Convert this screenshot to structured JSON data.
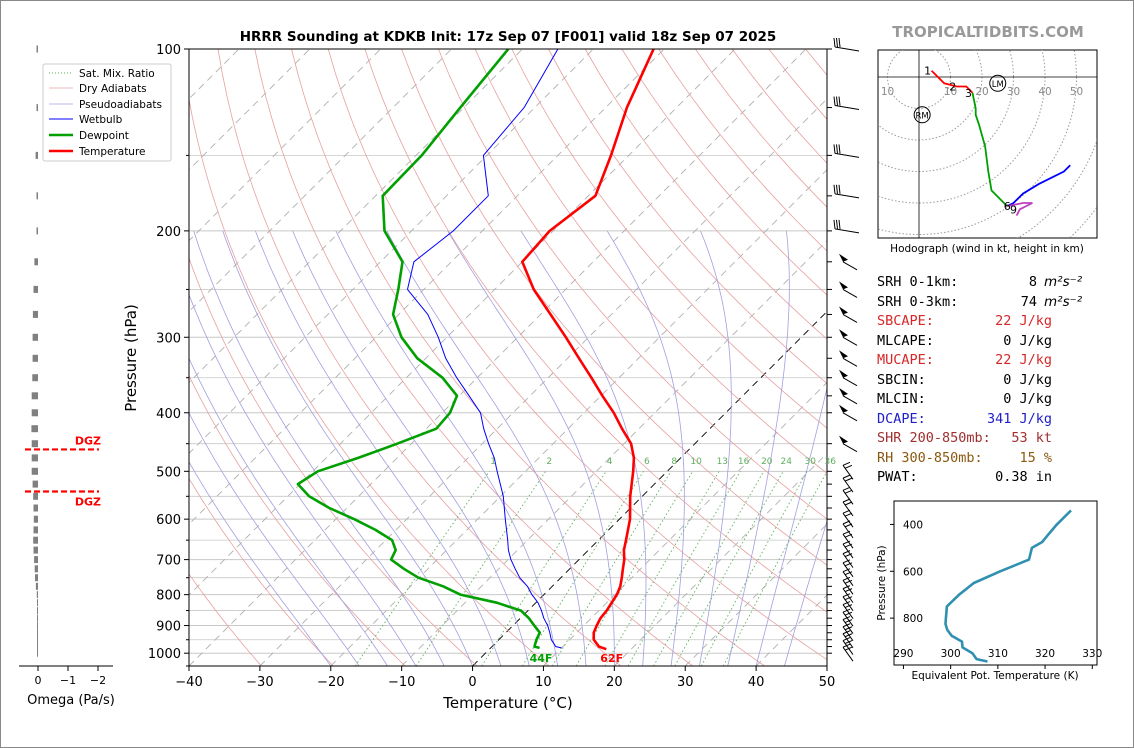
{
  "title": "HRRR Sounding at KDKB Init: 17z Sep 07 [F001] valid 18z Sep 07 2025",
  "brand": "TROPICALTIDBITS.COM",
  "colors": {
    "temperature": "#ff0000",
    "dewpoint": "#00a000",
    "wetbulb": "#0000ff",
    "dry_adiabat": "#e8a0a0",
    "pseudoadiabat": "#a0a0e0",
    "mixing_ratio": "#60b060",
    "dgz": "#ff0000",
    "omega_bar": "#808080",
    "theta_e": "#3090b0",
    "brand": "#999999"
  },
  "chart_data": [
    {
      "name": "skewt",
      "type": "line",
      "xlabel": "Temperature (°C)",
      "ylabel": "Pressure (hPa)",
      "xlim": [
        -40,
        50
      ],
      "ylim": [
        1050,
        100
      ],
      "y_scale": "log",
      "skew": "45 degrees",
      "x_ticks": [
        -40,
        -30,
        -20,
        -10,
        0,
        10,
        20,
        30,
        40,
        50
      ],
      "x_tick_labels": [
        "−40",
        "−30",
        "−20",
        "−10",
        "0",
        "10",
        "20",
        "30",
        "40",
        "50"
      ],
      "y_ticks": [
        100,
        200,
        300,
        400,
        500,
        600,
        700,
        800,
        900,
        1000
      ],
      "y_tick_labels": [
        "100",
        "200",
        "300",
        "400",
        "500",
        "600",
        "700",
        "800",
        "900",
        "1000"
      ],
      "grid": true,
      "legend": [
        "Sat. Mix. Ratio",
        "Dry Adiabats",
        "Pseudoadiabats",
        "Wetbulb",
        "Dewpoint",
        "Temperature"
      ],
      "legend_position": "top-left",
      "mixing_ratio_labels": [
        "1",
        "2",
        "4",
        "6",
        "8",
        "10",
        "13",
        "16",
        "20",
        "24",
        "30",
        "36"
      ],
      "mixing_ratio_values": [
        1,
        2,
        4,
        6,
        8,
        10,
        13,
        16,
        20,
        24,
        30,
        36
      ],
      "surface_temp_label": "62F",
      "surface_dewpoint_label": "44F",
      "series": [
        {
          "name": "Temperature",
          "p": [
            985,
            975,
            950,
            925,
            900,
            875,
            850,
            825,
            800,
            775,
            750,
            725,
            700,
            675,
            650,
            600,
            550,
            500,
            475,
            450,
            425,
            400,
            375,
            350,
            325,
            300,
            275,
            250,
            225,
            200,
            175,
            150,
            125,
            100
          ],
          "t": [
            16.5,
            15.1,
            13.4,
            12.4,
            11.8,
            11.3,
            11.1,
            10.7,
            10.3,
            9.6,
            8.6,
            7.5,
            6.4,
            5.0,
            3.9,
            1.5,
            -1.7,
            -4.8,
            -6.6,
            -9.0,
            -12.4,
            -15.8,
            -19.8,
            -23.9,
            -28.4,
            -33.2,
            -38.6,
            -44.5,
            -50.0,
            -50.5,
            -49.0,
            -52.5,
            -57.0,
            -61.5
          ]
        },
        {
          "name": "Dewpoint",
          "p": [
            980,
            975,
            950,
            925,
            900,
            875,
            850,
            825,
            800,
            775,
            750,
            725,
            700,
            675,
            650,
            625,
            600,
            575,
            550,
            525,
            500,
            475,
            450,
            425,
            400,
            375,
            350,
            325,
            300,
            275,
            250,
            225,
            200,
            175,
            150,
            125,
            100
          ],
          "t": [
            6.9,
            6.0,
            5.3,
            4.8,
            3.0,
            1.2,
            -1.0,
            -5.5,
            -11.8,
            -15.4,
            -20.1,
            -23.4,
            -26.5,
            -27.2,
            -29.1,
            -32.9,
            -37.4,
            -42.5,
            -47.0,
            -50.3,
            -49.3,
            -45.5,
            -42.0,
            -38.6,
            -38.9,
            -40.3,
            -44.9,
            -51.2,
            -56.4,
            -60.8,
            -63.6,
            -66.9,
            -73.8,
            -79.0,
            -79.2,
            -80.5,
            -82.0
          ]
        },
        {
          "name": "Wetbulb",
          "p": [
            980,
            975,
            950,
            925,
            900,
            875,
            850,
            825,
            800,
            775,
            750,
            725,
            700,
            675,
            650,
            600,
            550,
            500,
            475,
            450,
            425,
            400,
            375,
            350,
            325,
            300,
            275,
            250,
            225,
            200,
            175,
            150,
            125,
            100
          ],
          "t": [
            10.0,
            9.0,
            7.4,
            6.2,
            4.9,
            3.3,
            1.9,
            0.3,
            -1.7,
            -3.5,
            -5.8,
            -7.7,
            -9.6,
            -11.3,
            -12.8,
            -16.1,
            -19.6,
            -24.0,
            -26.3,
            -29.1,
            -31.9,
            -34.6,
            -38.6,
            -42.9,
            -47.2,
            -51.2,
            -55.9,
            -62.3,
            -65.3,
            -64.1,
            -64.1,
            -70.5,
            -71.5,
            -75.0
          ]
        }
      ],
      "wind_barb_pressures": [
        100,
        125,
        150,
        175,
        200,
        225,
        250,
        275,
        300,
        325,
        350,
        375,
        400,
        450,
        500,
        525,
        550,
        575,
        600,
        625,
        650,
        675,
        700,
        725,
        750,
        775,
        800,
        825,
        850,
        875,
        900,
        925,
        950,
        975,
        1000
      ]
    },
    {
      "name": "omega",
      "type": "bar",
      "xlabel": "Omega (Pa/s)",
      "x_ticks": [
        0,
        -1,
        -2
      ],
      "x_tick_labels": [
        "0",
        "−1",
        "−2"
      ],
      "p": [
        100,
        125,
        150,
        175,
        200,
        225,
        250,
        275,
        300,
        325,
        350,
        375,
        400,
        425,
        450,
        475,
        500,
        525,
        550,
        575,
        600,
        625,
        650,
        675,
        700,
        725,
        750,
        775,
        800,
        825,
        850,
        875,
        900,
        925,
        950,
        975,
        1000
      ],
      "values": [
        -0.05,
        -0.05,
        -0.08,
        -0.05,
        -0.05,
        -0.12,
        -0.15,
        -0.17,
        -0.18,
        -0.18,
        -0.19,
        -0.21,
        -0.21,
        -0.22,
        -0.21,
        -0.21,
        -0.21,
        -0.18,
        -0.16,
        -0.15,
        -0.14,
        -0.15,
        -0.16,
        -0.15,
        -0.13,
        -0.11,
        -0.1,
        -0.07,
        -0.04,
        -0.02,
        -0.01,
        -0.01,
        0.0,
        -0.03,
        -0.03,
        -0.03,
        -0.03
      ],
      "dgz_label": "DGZ",
      "dgz_bounds_hPa": [
        460,
        540
      ]
    },
    {
      "name": "hodograph",
      "type": "line",
      "caption": "Hodograph (wind in kt, height in km)",
      "range_labels": [
        "10",
        "10",
        "20",
        "30",
        "40",
        "50"
      ],
      "range_values": [
        10,
        10,
        20,
        30,
        40,
        50
      ],
      "height_labels": [
        "1",
        "2",
        "3",
        "6",
        "9"
      ],
      "markers": [
        "LM",
        "RM"
      ],
      "segments": [
        {
          "color": "#ff0000",
          "points": [
            [
              4,
              2
            ],
            [
              8,
              -2
            ],
            [
              12,
              -3
            ],
            [
              15,
              -3
            ],
            [
              17,
              -5
            ]
          ]
        },
        {
          "color": "#00a000",
          "points": [
            [
              17,
              -5
            ],
            [
              18,
              -10
            ],
            [
              18,
              -12
            ],
            [
              19,
              -15
            ],
            [
              21,
              -22
            ],
            [
              22,
              -30
            ],
            [
              23,
              -36
            ],
            [
              25,
              -38
            ],
            [
              28,
              -41
            ]
          ]
        },
        {
          "color": "#0000ff",
          "points": [
            [
              28,
              -41
            ],
            [
              30,
              -40
            ],
            [
              33,
              -37
            ],
            [
              38,
              -34
            ],
            [
              46,
              -30
            ],
            [
              48,
              -28
            ]
          ]
        },
        {
          "color": "#c040c0",
          "points": [
            [
              28,
              -41
            ],
            [
              33,
              -40
            ],
            [
              36,
              -40
            ],
            [
              32,
              -42
            ],
            [
              31,
              -44
            ]
          ]
        }
      ],
      "height_label_points": [
        [
          4,
          2
        ],
        [
          12,
          -3
        ],
        [
          17,
          -5
        ],
        [
          28,
          -41
        ],
        [
          30,
          -42
        ]
      ],
      "lm_point": [
        25,
        -2
      ],
      "rm_point": [
        1,
        -12
      ]
    },
    {
      "name": "theta_e",
      "type": "line",
      "xlabel": "Equivalent Pot. Temperature (K)",
      "ylabel": "Pressure (hPa)",
      "x_ticks": [
        290,
        300,
        310,
        320,
        330
      ],
      "x_tick_labels": [
        "290",
        "300",
        "310",
        "320",
        "330"
      ],
      "y_ticks": [
        400,
        600,
        800
      ],
      "y_tick_labels": [
        "400",
        "600",
        "800"
      ],
      "xlim": [
        288,
        331
      ],
      "ylim": [
        1000,
        300
      ],
      "thetae": [
        307.8,
        305.5,
        304.6,
        302.5,
        302.4,
        300.2,
        299.3,
        298.9,
        299.0,
        299.2,
        301.8,
        304.9,
        310.5,
        316.6,
        317.2,
        319.4,
        320.4,
        322.5,
        325.5
      ],
      "p": [
        985,
        975,
        950,
        925,
        900,
        875,
        850,
        825,
        800,
        750,
        700,
        650,
        600,
        550,
        500,
        475,
        450,
        400,
        340
      ]
    }
  ],
  "params": [
    {
      "label": "SRH 0-1km:",
      "value": "8",
      "unit": "m²s⁻²",
      "color": "#000000"
    },
    {
      "label": "SRH 0-3km:",
      "value": "74",
      "unit": "m²s⁻²",
      "color": "#000000"
    },
    {
      "label": "SBCAPE:",
      "value": "22 J/kg",
      "unit": "",
      "color": "#d62728"
    },
    {
      "label": "MLCAPE:",
      "value": "0 J/kg",
      "unit": "",
      "color": "#000000"
    },
    {
      "label": "MUCAPE:",
      "value": "22 J/kg",
      "unit": "",
      "color": "#d62728"
    },
    {
      "label": "SBCIN:",
      "value": "0 J/kg",
      "unit": "",
      "color": "#000000"
    },
    {
      "label": "MLCIN:",
      "value": "0 J/kg",
      "unit": "",
      "color": "#000000"
    },
    {
      "label": "DCAPE:",
      "value": "341 J/kg",
      "unit": "",
      "color": "#2020c8"
    },
    {
      "label": "SHR 200-850mb:",
      "value": "53 kt",
      "unit": "",
      "color": "#a03030"
    },
    {
      "label": "RH 300-850mb:",
      "value": "15 %",
      "unit": "",
      "color": "#8a5a10"
    },
    {
      "label": "PWAT:",
      "value": "0.38 in",
      "unit": "",
      "color": "#000000"
    }
  ]
}
